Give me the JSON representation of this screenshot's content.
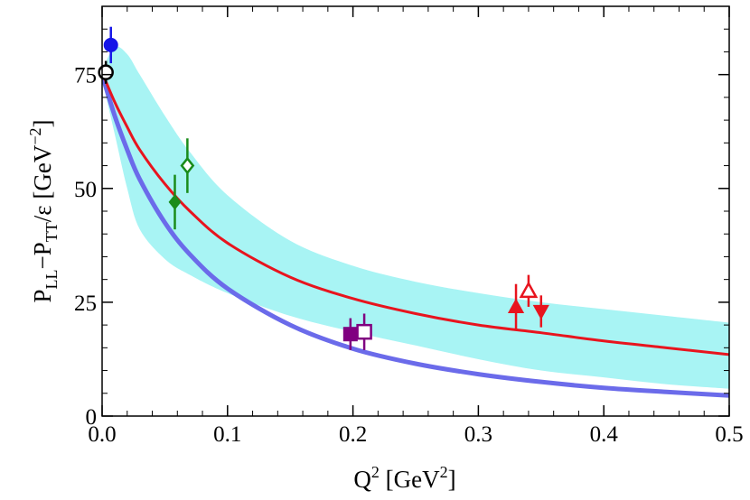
{
  "chart_data": {
    "type": "scatter",
    "title": "",
    "xlabel": {
      "main": "Q",
      "sup": "2",
      "unit_open": " [GeV",
      "unit_sup": "2",
      "unit_close": "]"
    },
    "ylabel": {
      "p1": "P",
      "s1": "LL",
      "minus": "−P",
      "s2": "TT",
      "rest": "/ε [GeV",
      "unit_sup": "−2",
      "unit_close": "]"
    },
    "xlim": [
      0,
      0.5
    ],
    "ylim": [
      0,
      90
    ],
    "x_ticks": [
      {
        "value": 0.0,
        "label": "0.0"
      },
      {
        "value": 0.1,
        "label": "0.1"
      },
      {
        "value": 0.2,
        "label": "0.2"
      },
      {
        "value": 0.3,
        "label": "0.3"
      },
      {
        "value": 0.4,
        "label": "0.4"
      },
      {
        "value": 0.5,
        "label": "0.5"
      }
    ],
    "y_ticks": [
      {
        "value": 0,
        "label": "0"
      },
      {
        "value": 25,
        "label": "25"
      },
      {
        "value": 50,
        "label": "50"
      },
      {
        "value": 75,
        "label": "75"
      }
    ],
    "band": {
      "name": "cyan uncertainty band",
      "color": "#a8f4f4",
      "x": [
        0,
        0.01,
        0.02,
        0.03,
        0.05,
        0.07,
        0.1,
        0.15,
        0.2,
        0.25,
        0.3,
        0.35,
        0.4,
        0.45,
        0.5
      ],
      "upper": [
        76,
        81,
        79.5,
        75,
        66,
        58,
        48.5,
        38.5,
        33,
        29.5,
        27,
        25,
        23.5,
        22,
        20.5
      ],
      "lower": [
        74,
        62,
        50,
        41,
        34.5,
        31,
        27,
        22,
        18.5,
        15.5,
        12.5,
        10,
        8.5,
        7,
        6
      ]
    },
    "series": [
      {
        "name": "red curve",
        "kind": "line",
        "color": "#e8141e",
        "width": 3,
        "x": [
          0,
          0.01,
          0.02,
          0.03,
          0.05,
          0.07,
          0.1,
          0.15,
          0.2,
          0.25,
          0.3,
          0.35,
          0.4,
          0.45,
          0.5
        ],
        "y": [
          75.5,
          69,
          63.5,
          58.5,
          51,
          45,
          38,
          30.5,
          25.8,
          22.5,
          20,
          18.3,
          16.5,
          15,
          13.5
        ]
      },
      {
        "name": "blue curve",
        "kind": "line",
        "color": "#6b6bea",
        "width": 5,
        "x": [
          0,
          0.01,
          0.02,
          0.03,
          0.05,
          0.07,
          0.1,
          0.15,
          0.2,
          0.25,
          0.3,
          0.35,
          0.4,
          0.45,
          0.5
        ],
        "y": [
          75,
          66,
          58.5,
          52,
          42.5,
          35.5,
          28,
          20,
          14.8,
          11.5,
          9.2,
          7.5,
          6.2,
          5.3,
          4.5
        ]
      }
    ],
    "points": [
      {
        "name": "blue-filled-circle",
        "x": 0.007,
        "y": 81.5,
        "err": 4,
        "marker": "circle",
        "filled": true,
        "color": "#1515e8"
      },
      {
        "name": "black-open-circle",
        "x": 0.003,
        "y": 75.5,
        "err": 2.5,
        "marker": "circle",
        "filled": false,
        "color": "#000000"
      },
      {
        "name": "green-filled-diamond",
        "x": 0.058,
        "y": 47,
        "err": 6,
        "marker": "diamond",
        "filled": true,
        "color": "#1a8c1a"
      },
      {
        "name": "green-open-diamond",
        "x": 0.068,
        "y": 55,
        "err": 6,
        "marker": "diamond",
        "filled": false,
        "color": "#1a8c1a"
      },
      {
        "name": "purple-filled-square",
        "x": 0.198,
        "y": 18,
        "err": 3.5,
        "marker": "square",
        "filled": true,
        "color": "#800080"
      },
      {
        "name": "purple-open-square",
        "x": 0.209,
        "y": 18.5,
        "err": 4,
        "marker": "square",
        "filled": false,
        "color": "#800080"
      },
      {
        "name": "red-filled-triangle-up",
        "x": 0.33,
        "y": 24,
        "err": 5,
        "marker": "triangle-up",
        "filled": true,
        "color": "#e8141e"
      },
      {
        "name": "red-open-triangle-up",
        "x": 0.34,
        "y": 27.5,
        "err": 3.5,
        "marker": "triangle-up",
        "filled": false,
        "color": "#e8141e"
      },
      {
        "name": "red-filled-triangle-down",
        "x": 0.35,
        "y": 23,
        "err": 3.5,
        "marker": "triangle-down",
        "filled": true,
        "color": "#e8141e"
      }
    ]
  }
}
